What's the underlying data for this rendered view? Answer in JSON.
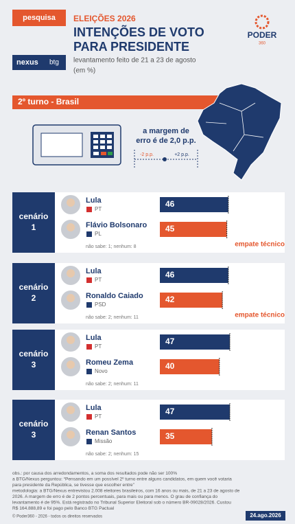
{
  "header": {
    "tag": "pesquisa",
    "brand": "nexus",
    "partner": "btg",
    "kicker": "ELEIÇÕES 2026",
    "title_lines": [
      "INTENÇÕES DE VOTO",
      "PARA PRESIDENTE"
    ],
    "subtitle": "levantamento feito de 21 a 23 de agosto",
    "unit": "(em %)",
    "logo": "PODER",
    "logo_sub": "360"
  },
  "section": "2º turno - Brasil",
  "margin": {
    "text_lines": [
      "a margem de",
      "erro é de 2,0 p.p."
    ],
    "minus": "-2 p.p.",
    "plus": "+2 p.p."
  },
  "scenarios": [
    {
      "label_lines": [
        "cenário",
        "1"
      ],
      "candidates": [
        {
          "name": "Lula",
          "party": "PT",
          "value": 46,
          "color": "#1f3a6d"
        },
        {
          "name": "Flávio Bolsonaro",
          "party": "PL",
          "value": 45,
          "color": "#e4572e"
        }
      ],
      "note": "não sabe: 1; nenhum: 8",
      "tie": "empate técnico"
    },
    {
      "label_lines": [
        "cenário",
        "2"
      ],
      "candidates": [
        {
          "name": "Lula",
          "party": "PT",
          "value": 46,
          "color": "#1f3a6d"
        },
        {
          "name": "Ronaldo Caiado",
          "party": "PSD",
          "value": 42,
          "color": "#e4572e"
        }
      ],
      "note": "não sabe: 2; nenhum: 11",
      "tie": "empate técnico"
    },
    {
      "label_lines": [
        "cenário",
        "3"
      ],
      "candidates": [
        {
          "name": "Lula",
          "party": "PT",
          "value": 47,
          "color": "#1f3a6d"
        },
        {
          "name": "Romeu Zema",
          "party": "Novo",
          "value": 40,
          "color": "#e4572e"
        }
      ],
      "note": "não sabe: 2; nenhum: 11"
    },
    {
      "label_lines": [
        "cenário",
        "3"
      ],
      "candidates": [
        {
          "name": "Lula",
          "party": "PT",
          "value": 47,
          "color": "#1f3a6d"
        },
        {
          "name": "Renan Santos",
          "party": "Missão",
          "value": 35,
          "color": "#e4572e"
        }
      ],
      "note": "não sabe: 2; nenhum: 15"
    }
  ],
  "notes": [
    "obs.: por causa dos arredondamentos, a soma dos resultados pode não ser 100%",
    "a BTG/Nexus perguntou: “Pensando em um possível 2º turno entre alguns candidatos, em quem você votaria",
    "para presidente da República, se tivesse que escolher entre”",
    "metodologia: a BTG/Nexus entrevistou 2.008 eleitores brasileiros, com 16 anos ou mais, de 21 a 23 de agosto de",
    "2026. A margem de erro é de 2 pontos percentuais, para mais ou para menos. O grau de confiança do",
    "levantamento é de 95%. Está registrado no Tribunal Superior Eleitoral sob o número BR-09028/2026. Custou",
    "R$ 164.888,89 e foi pago pelo Banco BTG Pactual"
  ],
  "copyright": "© Poder360 - 2026 - todos os direitos reservados",
  "date": "24.ago.2026"
}
